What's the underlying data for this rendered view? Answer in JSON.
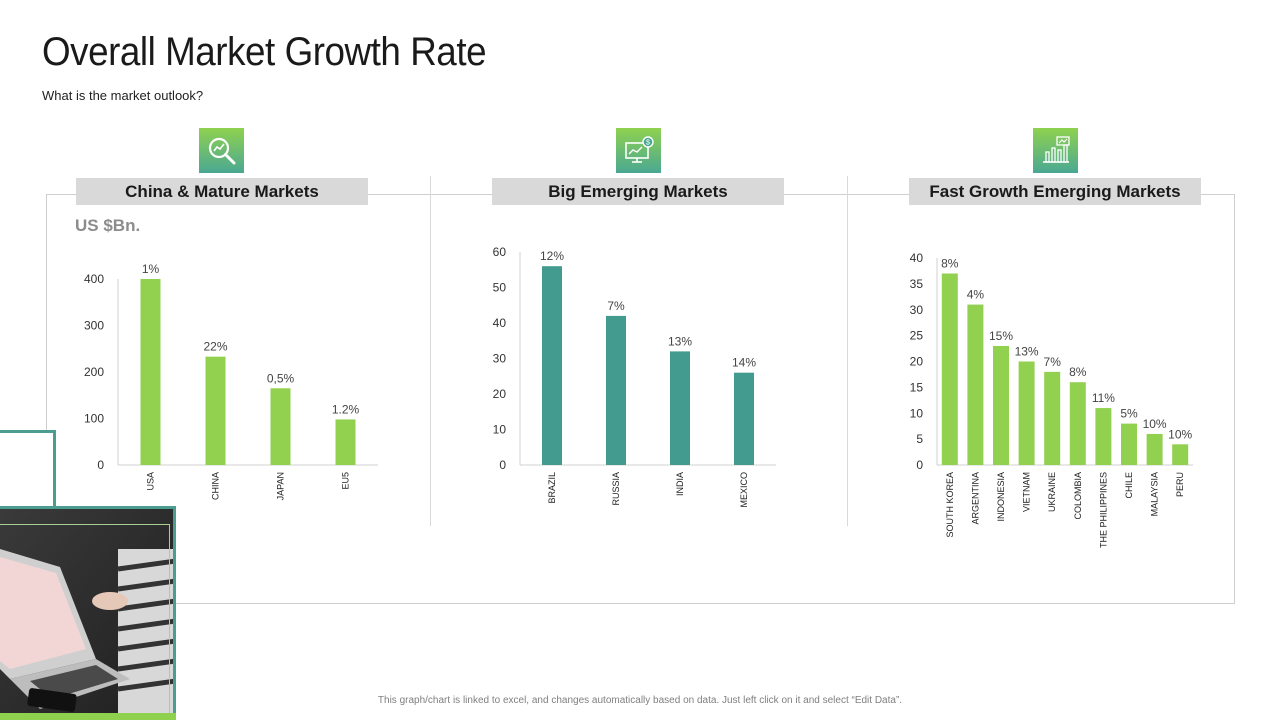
{
  "title": "Overall Market Growth Rate",
  "subtitle": "What is the market outlook?",
  "unit_label": "US $Bn.",
  "footnote": "This graph/chart is linked to excel, and changes automatically  based on data. Just left click on it and select “Edit Data”.",
  "colors": {
    "green": "#92d050",
    "teal": "#439a8f",
    "header_bg": "#d9d9d9",
    "icon_gradient_top": "#8fd14f",
    "icon_gradient_bottom": "#4aa892"
  },
  "panels": [
    {
      "header": "China & Mature Markets",
      "icon": "magnifier-chart-icon"
    },
    {
      "header": "Big Emerging Markets",
      "icon": "monitor-dollar-icon"
    },
    {
      "header": "Fast Growth Emerging Markets",
      "icon": "bar-chart-trend-icon"
    }
  ],
  "chart_data": [
    {
      "type": "bar",
      "title": "China & Mature Markets",
      "categories": [
        "USA",
        "CHINA",
        "JAPAN",
        "EU5"
      ],
      "values": [
        400,
        233,
        165,
        98
      ],
      "data_labels": [
        "1%",
        "22%",
        "0,5%",
        "1.2%"
      ],
      "ylim": [
        0,
        400
      ],
      "yticks": [
        0,
        100,
        200,
        300,
        400
      ],
      "color": "#92d050",
      "grid": false
    },
    {
      "type": "bar",
      "title": "Big Emerging Markets",
      "categories": [
        "BRAZIL",
        "RUSSIA",
        "INDIA",
        "MEXICO"
      ],
      "values": [
        56,
        42,
        32,
        26
      ],
      "data_labels": [
        "12%",
        "7%",
        "13%",
        "14%"
      ],
      "ylim": [
        0,
        60
      ],
      "yticks": [
        0,
        10,
        20,
        30,
        40,
        50,
        60
      ],
      "color": "#439a8f",
      "grid": false
    },
    {
      "type": "bar",
      "title": "Fast Growth Emerging Markets",
      "categories": [
        "SOUTH KOREA",
        "ARGENTINA",
        "INDONESIA",
        "VIETNAM",
        "UKRAINE",
        "COLOMBIA",
        "THE PHILIPPINES",
        "CHILE",
        "MALAYSIA",
        "PERU"
      ],
      "values": [
        37,
        31,
        23,
        20,
        18,
        16,
        11,
        8,
        6,
        4
      ],
      "data_labels": [
        "8%",
        "4%",
        "15%",
        "13%",
        "7%",
        "8%",
        "11%",
        "5%",
        "10%",
        "10%"
      ],
      "ylim": [
        0,
        40
      ],
      "yticks": [
        0,
        5,
        10,
        15,
        20,
        25,
        30,
        35,
        40
      ],
      "color": "#92d050",
      "grid": false
    }
  ]
}
